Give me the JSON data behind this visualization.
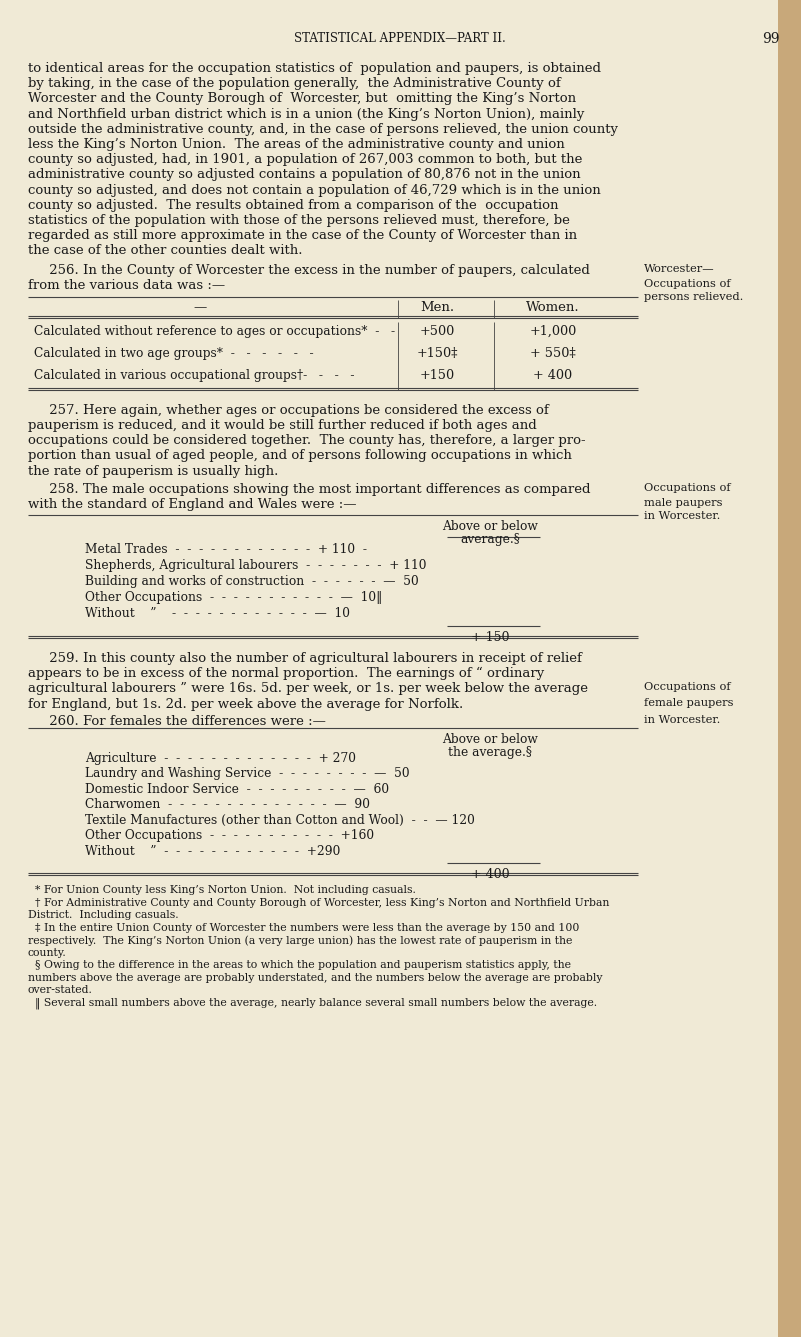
{
  "bg_color": "#f0ead6",
  "text_color": "#1a1a1a",
  "page_title": "STATISTICAL APPENDIX—PART II.",
  "page_number": "99",
  "para1_lines": [
    "to identical areas for the occupation statistics of  population and paupers, is obtained",
    "by taking, in the case of the population generally,  the Administrative County of",
    "Worcester and the County Borough of  Worcester, but  omitting the King’s Norton",
    "and Northfield urban district which is in a union (the King’s Norton Union), mainly",
    "outside the administrative county, and, in the case of persons relieved, the union county",
    "less the King’s Norton Union.  The areas of the administrative county and union",
    "county so adjusted, had, in 1901, a population of 267,003 common to both, but the",
    "administrative county so adjusted contains a population of 80,876 not in the union",
    "county so adjusted, and does not contain a population of 46,729 which is in the union",
    "county so adjusted.  The results obtained from a comparison of the  occupation",
    "statistics of the population with those of the persons relieved must, therefore, be",
    "regarded as still more approximate in the case of the County of Worcester than in",
    "the case of the other counties dealt with."
  ],
  "para256_line1": "     256. In the County of Worcester the excess in the number of paupers, calculated",
  "para256_line2": "from the various data was :—",
  "para256_side1": "Worcester—",
  "para256_side2": "Occupations of",
  "para256_side3": "persons relieved.",
  "table1_col1_header": "—",
  "table1_col2_header": "Men.",
  "table1_col3_header": "Women.",
  "table1_rows": [
    [
      "Calculated without reference to ages or occupations*  -   -",
      "+500",
      "+1,000"
    ],
    [
      "Calculated in two age groups*  -   -   -   -   -   -",
      "+150‡",
      "+ 550‡"
    ],
    [
      "Calculated in various occupational groups†-   -   -   -",
      "+150",
      "+ 400"
    ]
  ],
  "para257_lines": [
    "     257. Here again, whether ages or occupations be considered the excess of",
    "pauperism is reduced, and it would be still further reduced if both ages and",
    "occupations could be considered together.  The county has, therefore, a larger pro-",
    "portion than usual of aged people, and of persons following occupations in which",
    "the rate of pauperism is usually high."
  ],
  "para258_line1": "     258. The male occupations showing the most important differences as compared",
  "para258_line2": "with the standard of England and Wales were :—",
  "para258_side1": "Occupations of",
  "para258_side2": "male paupers",
  "para258_side3": "in Worcester.",
  "table2_col_header1": "Above or below",
  "table2_col_header2": "average.§",
  "table2_rows": [
    "Metal Trades  -  -  -  -  -  -  -  -  -  -  -  -  + 110  -",
    "Shepherds, Agricultural labourers  -  -  -  -  -  -  -  + 110",
    "Building and works of construction  -  -  -  -  -  -  —  50",
    "Other Occupations  -  -  -  -  -  -  -  -  -  -  -  —  10‖",
    "Without    ”    -  -  -  -  -  -  -  -  -  -  -  -  —  10"
  ],
  "table2_total": "+ 150",
  "para259_lines": [
    "     259. In this county also the number of agricultural labourers in receipt of relief",
    "appears to be in excess of the normal proportion.  The earnings of “ ordinary",
    "agricultural labourers ” were 16s. 5d. per week, or 1s. per week below the average",
    "for England, but 1s. 2d. per week above the average for Norfolk."
  ],
  "para260_line1": "     260. For females the differences were :—",
  "para260_side1": "Occupations of",
  "para260_side2": "female paupers",
  "para260_side3": "in Worcester.",
  "table3_col_header1": "Above or below",
  "table3_col_header2": "the average.§",
  "table3_rows": [
    "Agriculture  -  -  -  -  -  -  -  -  -  -  -  -  -  + 270",
    "Laundry and Washing Service  -  -  -  -  -  -  -  -  —  50",
    "Domestic Indoor Service  -  -  -  -  -  -  -  -  -  —  60",
    "Charwomen  -  -  -  -  -  -  -  -  -  -  -  -  -  -  —  90",
    "Textile Manufactures (other than Cotton and Wool)  -  -  — 120",
    "Other Occupations  -  -  -  -  -  -  -  -  -  -  -  +160",
    "Without    ”  -  -  -  -  -  -  -  -  -  -  -  -  +290"
  ],
  "table3_total": "+ 400",
  "footnotes": [
    "  * For Union County less King’s Norton Union.  Not including casuals.",
    "  † For Administrative County and County Borough of Worcester, less King’s Norton and Northfield Urban",
    "District.  Including casuals.",
    "  ‡ In the entire Union County of Worcester the numbers were less than the average by 150 and 100",
    "respectively.  The King’s Norton Union (a very large union) has the lowest rate of pauperism in the",
    "county.",
    "  § Owing to the difference in the areas to which the population and pauperism statistics apply, the",
    "numbers above the average are probably understated, and the numbers below the average are probably",
    "over-stated.",
    "  ‖ Several small numbers above the average, nearly balance several small numbers below the average."
  ]
}
